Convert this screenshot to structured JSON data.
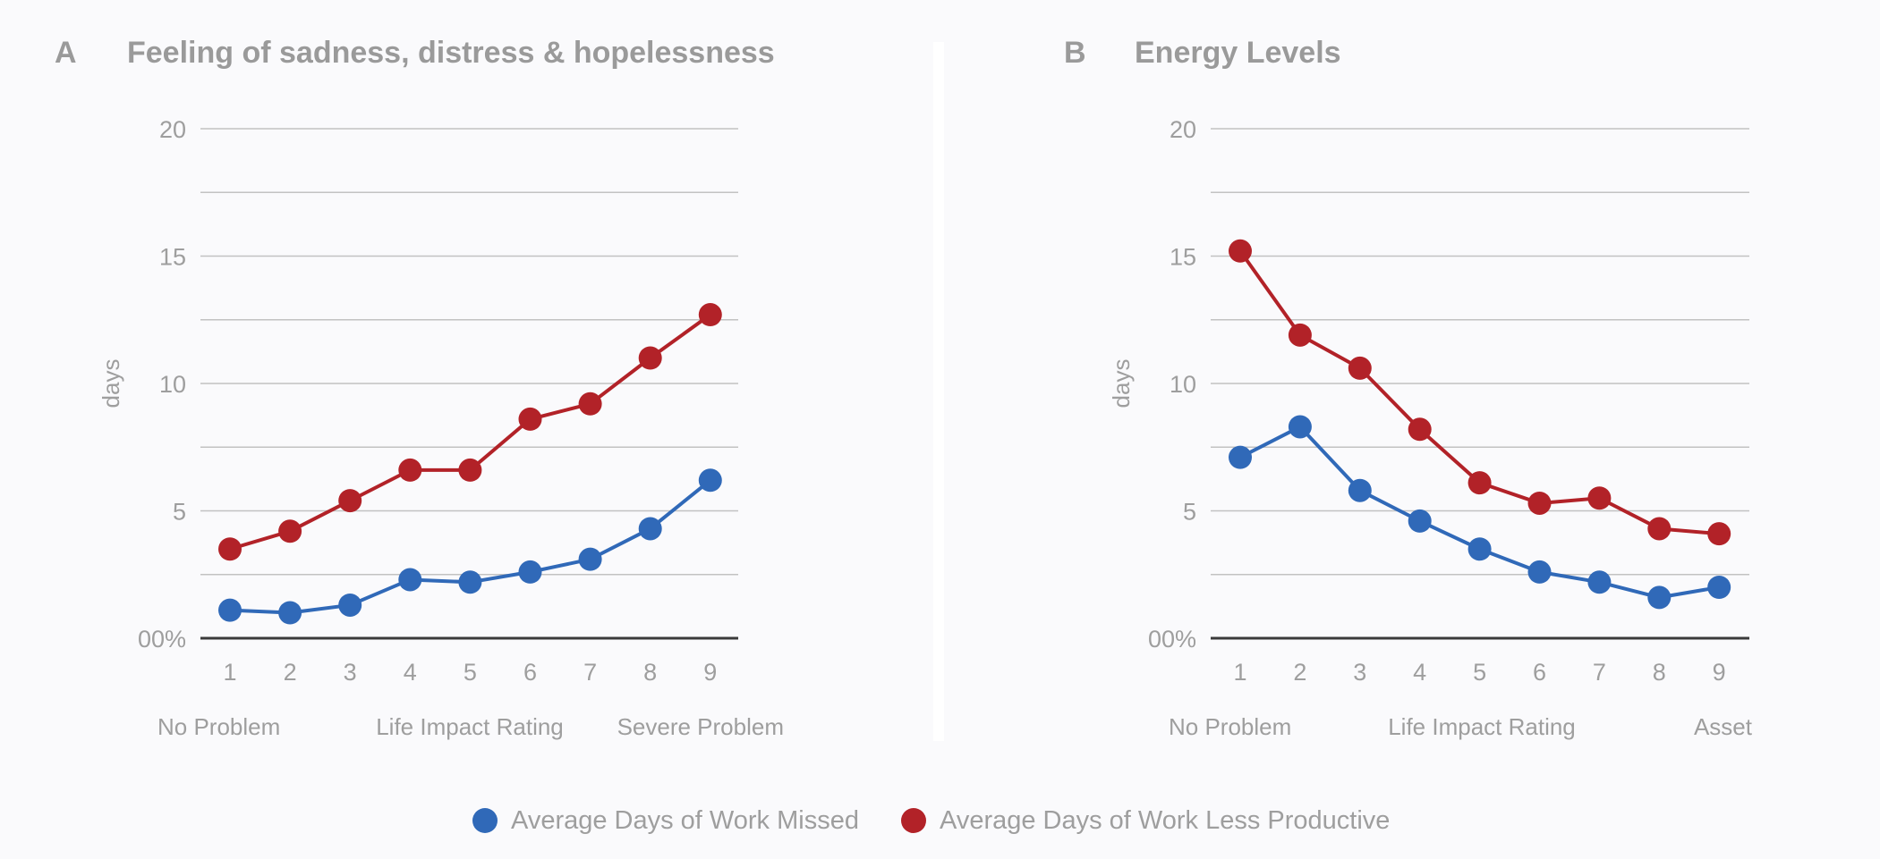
{
  "legend": [
    {
      "label": "Average Days of Work Missed",
      "color": "#3069b8"
    },
    {
      "label": "Average Days of Work Less Productive",
      "color": "#b22228"
    }
  ],
  "chart_data": [
    {
      "panel": "A",
      "type": "line",
      "title": "Feeling of sadness, distress & hopelessness",
      "xlabel": "Life Impact Rating",
      "xlabel_left": "No Problem",
      "xlabel_right": "Severe Problem",
      "ylabel": "days",
      "x": [
        1,
        2,
        3,
        4,
        5,
        6,
        7,
        8,
        9
      ],
      "ylim": [
        0,
        20
      ],
      "yticks": [
        0,
        5,
        10,
        15,
        20
      ],
      "ytick_labels": [
        "00%",
        "5",
        "10",
        "15",
        "20"
      ],
      "gridlines": [
        2.5,
        5,
        7.5,
        10,
        12.5,
        15,
        17.5,
        20
      ],
      "grid": true,
      "legend_position": "bottom",
      "series": [
        {
          "name": "Average Days of Work Missed",
          "color": "#3069b8",
          "values": [
            1.1,
            1.0,
            1.3,
            2.3,
            2.2,
            2.6,
            3.1,
            4.3,
            6.2
          ]
        },
        {
          "name": "Average Days of Work Less Productive",
          "color": "#b22228",
          "values": [
            3.5,
            4.2,
            5.4,
            6.6,
            6.6,
            8.6,
            9.2,
            11.0,
            12.7
          ]
        }
      ]
    },
    {
      "panel": "B",
      "type": "line",
      "title": "Energy Levels",
      "xlabel": "Life Impact Rating",
      "xlabel_left": "No Problem",
      "xlabel_right": "Asset",
      "ylabel": "days",
      "x": [
        1,
        2,
        3,
        4,
        5,
        6,
        7,
        8,
        9
      ],
      "ylim": [
        0,
        20
      ],
      "yticks": [
        0,
        5,
        10,
        15,
        20
      ],
      "ytick_labels": [
        "00%",
        "5",
        "10",
        "15",
        "20"
      ],
      "gridlines": [
        2.5,
        5,
        7.5,
        10,
        12.5,
        15,
        17.5,
        20
      ],
      "grid": true,
      "legend_position": "bottom",
      "series": [
        {
          "name": "Average Days of Work Missed",
          "color": "#3069b8",
          "values": [
            7.1,
            8.3,
            5.8,
            4.6,
            3.5,
            2.6,
            2.2,
            1.6,
            2.0
          ]
        },
        {
          "name": "Average Days of Work Less Productive",
          "color": "#b22228",
          "values": [
            15.2,
            11.9,
            10.6,
            8.2,
            6.1,
            5.3,
            5.5,
            4.3,
            4.1
          ]
        }
      ]
    }
  ]
}
